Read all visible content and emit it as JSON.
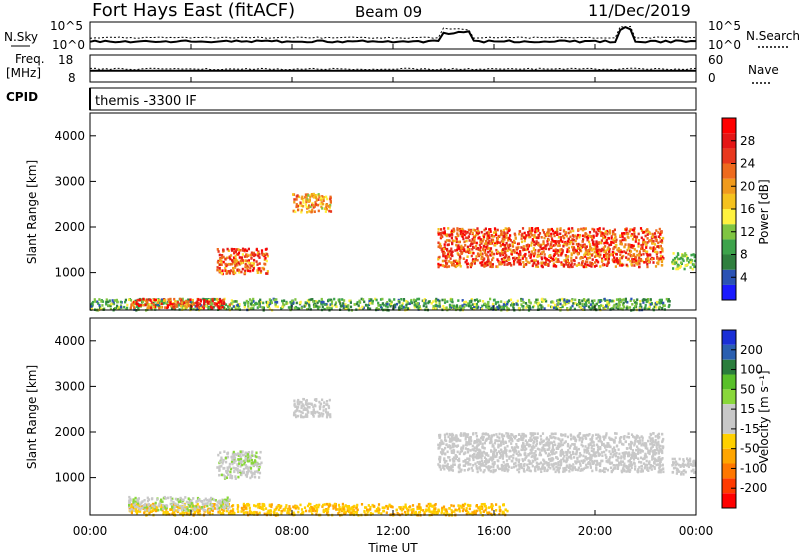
{
  "header": {
    "station": "Fort Hays East (fitACF)",
    "beam": "Beam 09",
    "date": "11/Dec/2019"
  },
  "strips": {
    "nsky_label": "N.Sky",
    "nsky_ticks": [
      "10^5",
      "10^0"
    ],
    "nsearch_label": "N.Search",
    "nsearch_ticks": [
      "10^5",
      "10^0"
    ],
    "freq_label": "Freq.",
    "freq_unit": "[MHz]",
    "freq_ticks": [
      "18",
      "8"
    ],
    "nave_label": "Nave",
    "nave_ticks": [
      "60",
      "0"
    ],
    "cpid_label": "CPID",
    "cpid_text": "themis -3300 IF"
  },
  "axes": {
    "ylabel": "Slant Range [km]",
    "xlabel": "Time UT",
    "x_ticks": [
      "00:00",
      "04:00",
      "08:00",
      "12:00",
      "16:00",
      "20:00",
      "00:00"
    ],
    "y_ticks": [
      "1000",
      "2000",
      "3000",
      "4000"
    ]
  },
  "colors": {
    "power_scale": [
      "#1a1aff",
      "#2a52b4",
      "#2f7f3e",
      "#3da34b",
      "#7fc541",
      "#fff23f",
      "#f5c21e",
      "#f09a1c",
      "#ee6a1e",
      "#e8381e",
      "#e51515",
      "#ff0000"
    ],
    "velocity_scale": [
      "#ff0000",
      "#ff3a00",
      "#ff7700",
      "#ffa500",
      "#ffd000",
      "#c8c8c8",
      "#c8c8c8",
      "#89d73a",
      "#59c02a",
      "#2a7d3c",
      "#2a5fb0",
      "#1a2fd6"
    ],
    "velocity_ground": "#c8c8c8"
  },
  "colorbars": {
    "power": {
      "label": "Power [dB]",
      "ticks": [
        "4",
        "8",
        "12",
        "16",
        "20",
        "24",
        "28"
      ]
    },
    "velocity": {
      "label": "Velocity [m s⁻¹]",
      "ticks": [
        "-200",
        "-100",
        "-50",
        "-15",
        "15",
        "50",
        "100",
        "200"
      ]
    }
  },
  "chart_data": [
    {
      "type": "heatmap",
      "title": "Power",
      "xlabel": "Time UT",
      "ylabel": "Slant Range [km]",
      "x_range": [
        "00:00",
        "24:00"
      ],
      "ylim": [
        180,
        4500
      ],
      "colorbar": {
        "label": "Power [dB]",
        "range": [
          0,
          30
        ]
      },
      "echo_regions": [
        {
          "time_start": "00:00",
          "time_end": "23:00",
          "range_start": 200,
          "range_end": 450,
          "power_db": [
            4,
            14
          ]
        },
        {
          "time_start": "01:30",
          "time_end": "05:30",
          "range_start": 250,
          "range_end": 450,
          "power_db": [
            16,
            30
          ]
        },
        {
          "time_start": "05:00",
          "time_end": "07:00",
          "range_start": 1000,
          "range_end": 1550,
          "power_db": [
            14,
            30
          ]
        },
        {
          "time_start": "08:00",
          "time_end": "09:30",
          "range_start": 2350,
          "range_end": 2750,
          "power_db": [
            12,
            24
          ]
        },
        {
          "time_start": "13:45",
          "time_end": "22:40",
          "range_start": 1150,
          "range_end": 2000,
          "power_db": [
            16,
            30
          ]
        },
        {
          "time_start": "23:00",
          "time_end": "23:55",
          "range_start": 1100,
          "range_end": 1450,
          "power_db": [
            8,
            14
          ]
        }
      ]
    },
    {
      "type": "heatmap",
      "title": "Velocity",
      "xlabel": "Time UT",
      "ylabel": "Slant Range [km]",
      "x_range": [
        "00:00",
        "24:00"
      ],
      "ylim": [
        180,
        4500
      ],
      "colorbar": {
        "label": "Velocity [m s⁻¹]",
        "range": [
          -250,
          250
        ]
      },
      "echo_regions": [
        {
          "time_start": "01:30",
          "time_end": "16:30",
          "range_start": 200,
          "range_end": 450,
          "velocity": [
            -100,
            -50
          ]
        },
        {
          "time_start": "01:30",
          "time_end": "05:30",
          "range_start": 300,
          "range_end": 600,
          "velocity": [
            15,
            50
          ]
        },
        {
          "time_start": "05:00",
          "time_end": "06:45",
          "range_start": 1000,
          "range_end": 1600,
          "velocity": [
            15,
            50
          ]
        },
        {
          "time_start": "08:00",
          "time_end": "09:30",
          "range_start": 2350,
          "range_end": 2750,
          "velocity": [
            -15,
            15
          ]
        },
        {
          "time_start": "13:45",
          "time_end": "22:40",
          "range_start": 1150,
          "range_end": 2000,
          "velocity": [
            -15,
            15
          ]
        },
        {
          "time_start": "23:00",
          "time_end": "23:55",
          "range_start": 1100,
          "range_end": 1450,
          "velocity": [
            -15,
            15
          ]
        }
      ]
    }
  ]
}
